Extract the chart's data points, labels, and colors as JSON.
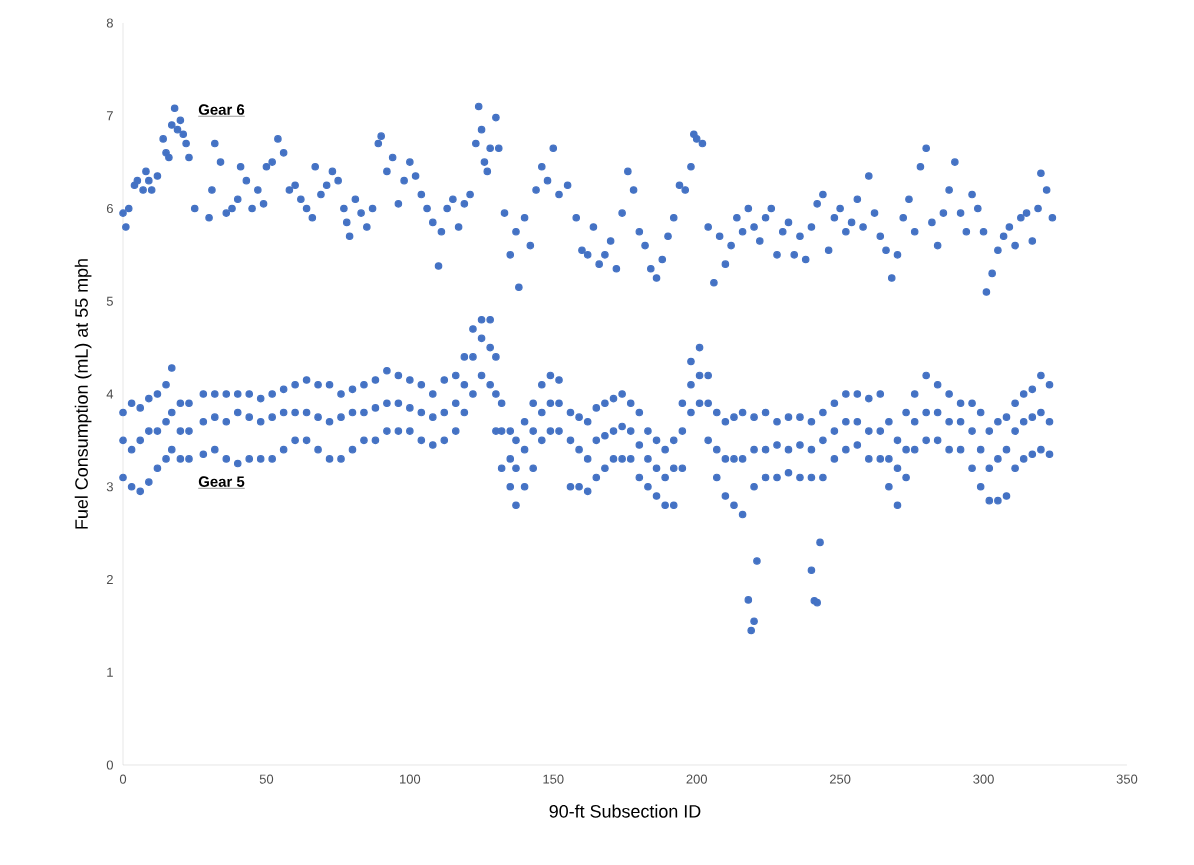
{
  "chart_data": {
    "type": "scatter",
    "xlabel": "90-ft Subsection ID",
    "ylabel": "Fuel Consumption (mL) at 55 mph",
    "xlim": [
      0,
      350
    ],
    "xticks": [
      0,
      50,
      100,
      150,
      200,
      250,
      300,
      350
    ],
    "ylim": [
      0,
      8
    ],
    "yticks": [
      0,
      1,
      2,
      3,
      4,
      5,
      6,
      7,
      8
    ],
    "grid": false,
    "legend": false,
    "marker": "circle",
    "series": [
      {
        "name": "Gear 6",
        "color": "#4472c4",
        "x": [
          0,
          1,
          2,
          4,
          5,
          7,
          8,
          9,
          10,
          12,
          14,
          15,
          16,
          17,
          18,
          19,
          20,
          21,
          22,
          23,
          25,
          30,
          31,
          32,
          34,
          36,
          38,
          40,
          41,
          43,
          45,
          47,
          49,
          50,
          52,
          54,
          56,
          58,
          60,
          62,
          64,
          66,
          67,
          69,
          71,
          73,
          75,
          77,
          78,
          79,
          81,
          83,
          85,
          87,
          89,
          90,
          92,
          94,
          96,
          98,
          100,
          102,
          104,
          106,
          108,
          110,
          111,
          113,
          115,
          117,
          119,
          121,
          123,
          124,
          125,
          126,
          127,
          128,
          130,
          131,
          133,
          135,
          137,
          138,
          140,
          142,
          144,
          146,
          148,
          150,
          152,
          155,
          158,
          160,
          162,
          164,
          166,
          168,
          170,
          172,
          174,
          176,
          178,
          180,
          182,
          184,
          186,
          188,
          190,
          192,
          194,
          196,
          198,
          199,
          200,
          202,
          204,
          206,
          208,
          210,
          212,
          214,
          216,
          218,
          220,
          222,
          224,
          226,
          228,
          230,
          232,
          234,
          236,
          238,
          240,
          242,
          244,
          246,
          248,
          250,
          252,
          254,
          256,
          258,
          260,
          262,
          264,
          266,
          268,
          270,
          272,
          274,
          276,
          278,
          280,
          282,
          284,
          286,
          288,
          290,
          292,
          294,
          296,
          298,
          300,
          301,
          303,
          305,
          307,
          309,
          311,
          313,
          315,
          317,
          319,
          320,
          322,
          324
        ],
        "values": [
          5.95,
          5.8,
          6.0,
          6.25,
          6.3,
          6.2,
          6.4,
          6.3,
          6.2,
          6.35,
          6.75,
          6.6,
          6.55,
          6.9,
          7.08,
          6.85,
          6.95,
          6.8,
          6.7,
          6.55,
          6.0,
          5.9,
          6.2,
          6.7,
          6.5,
          5.95,
          6.0,
          6.1,
          6.45,
          6.3,
          6.0,
          6.2,
          6.05,
          6.45,
          6.5,
          6.75,
          6.6,
          6.2,
          6.25,
          6.1,
          6.0,
          5.9,
          6.45,
          6.15,
          6.25,
          6.4,
          6.3,
          6.0,
          5.85,
          5.7,
          6.1,
          5.95,
          5.8,
          6.0,
          6.7,
          6.78,
          6.4,
          6.55,
          6.05,
          6.3,
          6.5,
          6.35,
          6.15,
          6.0,
          5.85,
          5.38,
          5.75,
          6.0,
          6.1,
          5.8,
          6.05,
          6.15,
          6.7,
          7.1,
          6.85,
          6.5,
          6.4,
          6.65,
          6.98,
          6.65,
          5.95,
          5.5,
          5.75,
          5.15,
          5.9,
          5.6,
          6.2,
          6.45,
          6.3,
          6.65,
          6.15,
          6.25,
          5.9,
          5.55,
          5.5,
          5.8,
          5.4,
          5.5,
          5.65,
          5.35,
          5.95,
          6.4,
          6.2,
          5.75,
          5.6,
          5.35,
          5.25,
          5.45,
          5.7,
          5.9,
          6.25,
          6.2,
          6.45,
          6.8,
          6.75,
          6.7,
          5.8,
          5.2,
          5.7,
          5.4,
          5.6,
          5.9,
          5.75,
          6.0,
          5.8,
          5.65,
          5.9,
          6.0,
          5.5,
          5.75,
          5.85,
          5.5,
          5.7,
          5.45,
          5.8,
          6.05,
          6.15,
          5.55,
          5.9,
          6.0,
          5.75,
          5.85,
          6.1,
          5.8,
          6.35,
          5.95,
          5.7,
          5.55,
          5.25,
          5.5,
          5.9,
          6.1,
          5.75,
          6.45,
          6.65,
          5.85,
          5.6,
          5.95,
          6.2,
          6.5,
          5.95,
          5.75,
          6.15,
          6.0,
          5.75,
          5.1,
          5.3,
          5.55,
          5.7,
          5.8,
          5.6,
          5.9,
          5.95,
          5.65,
          6.0,
          6.38,
          6.2,
          5.9
        ]
      },
      {
        "name": "Gear 5",
        "color": "#4472c4",
        "x": [
          0,
          0,
          0,
          3,
          3,
          3,
          6,
          6,
          6,
          9,
          9,
          9,
          12,
          12,
          12,
          15,
          15,
          15,
          17,
          17,
          17,
          20,
          20,
          20,
          23,
          23,
          23,
          28,
          28,
          28,
          32,
          32,
          32,
          36,
          36,
          36,
          40,
          40,
          40,
          44,
          44,
          44,
          48,
          48,
          48,
          52,
          52,
          52,
          56,
          56,
          56,
          60,
          60,
          60,
          64,
          64,
          64,
          68,
          68,
          68,
          72,
          72,
          72,
          76,
          76,
          76,
          80,
          80,
          80,
          84,
          84,
          84,
          88,
          88,
          88,
          92,
          92,
          92,
          96,
          96,
          96,
          100,
          100,
          100,
          104,
          104,
          104,
          108,
          108,
          108,
          112,
          112,
          112,
          116,
          116,
          116,
          119,
          119,
          119,
          122,
          122,
          122,
          125,
          125,
          125,
          128,
          128,
          128,
          130,
          130,
          130,
          132,
          132,
          132,
          135,
          135,
          135,
          137,
          137,
          137,
          140,
          140,
          140,
          143,
          143,
          143,
          146,
          146,
          146,
          149,
          149,
          149,
          152,
          152,
          152,
          156,
          156,
          156,
          159,
          159,
          159,
          162,
          162,
          162,
          165,
          165,
          165,
          168,
          168,
          168,
          171,
          171,
          171,
          174,
          174,
          174,
          177,
          177,
          177,
          180,
          180,
          180,
          183,
          183,
          183,
          186,
          186,
          186,
          189,
          189,
          189,
          192,
          192,
          192,
          195,
          195,
          195,
          198,
          198,
          198,
          201,
          201,
          201,
          204,
          204,
          204,
          207,
          207,
          207,
          210,
          210,
          210,
          213,
          213,
          213,
          216,
          216,
          216,
          220,
          220,
          220,
          224,
          224,
          224,
          228,
          228,
          228,
          232,
          232,
          232,
          236,
          236,
          236,
          240,
          240,
          240,
          244,
          244,
          244,
          248,
          248,
          248,
          252,
          252,
          252,
          256,
          256,
          256,
          260,
          260,
          260,
          264,
          264,
          264,
          267,
          267,
          267,
          270,
          270,
          270,
          273,
          273,
          273,
          276,
          276,
          276,
          280,
          280,
          280,
          284,
          284,
          284,
          288,
          288,
          288,
          292,
          292,
          292,
          296,
          296,
          296,
          299,
          299,
          299,
          302,
          302,
          302,
          305,
          305,
          305,
          308,
          308,
          308,
          311,
          311,
          311,
          314,
          314,
          314,
          317,
          317,
          317,
          320,
          320,
          320,
          323,
          323,
          323,
          218,
          219,
          220,
          221,
          240,
          241,
          242,
          243
        ],
        "values": [
          3.1,
          3.5,
          3.8,
          3.0,
          3.4,
          3.9,
          2.95,
          3.5,
          3.85,
          3.05,
          3.6,
          3.95,
          3.2,
          3.6,
          4.0,
          3.3,
          3.7,
          4.1,
          3.4,
          3.8,
          4.28,
          3.3,
          3.6,
          3.9,
          3.3,
          3.6,
          3.9,
          3.35,
          3.7,
          4.0,
          3.4,
          3.75,
          4.0,
          3.3,
          3.7,
          4.0,
          3.25,
          3.8,
          4.0,
          3.3,
          3.75,
          4.0,
          3.3,
          3.7,
          3.95,
          3.3,
          3.75,
          4.0,
          3.4,
          3.8,
          4.05,
          3.5,
          3.8,
          4.1,
          3.5,
          3.8,
          4.15,
          3.4,
          3.75,
          4.1,
          3.3,
          3.7,
          4.1,
          3.3,
          3.75,
          4.0,
          3.4,
          3.8,
          4.05,
          3.5,
          3.8,
          4.1,
          3.5,
          3.85,
          4.15,
          3.6,
          3.9,
          4.25,
          3.6,
          3.9,
          4.2,
          3.6,
          3.85,
          4.15,
          3.5,
          3.8,
          4.1,
          3.45,
          3.75,
          4.0,
          3.5,
          3.8,
          4.15,
          3.6,
          3.9,
          4.2,
          3.8,
          4.1,
          4.4,
          4.0,
          4.4,
          4.7,
          4.2,
          4.6,
          4.8,
          4.1,
          4.5,
          4.8,
          3.6,
          4.0,
          4.4,
          3.2,
          3.6,
          3.9,
          3.0,
          3.3,
          3.6,
          2.8,
          3.2,
          3.5,
          3.0,
          3.4,
          3.7,
          3.2,
          3.6,
          3.9,
          3.5,
          3.8,
          4.1,
          3.6,
          3.9,
          4.2,
          3.6,
          3.9,
          4.15,
          3.0,
          3.5,
          3.8,
          3.0,
          3.4,
          3.75,
          2.95,
          3.3,
          3.7,
          3.1,
          3.5,
          3.85,
          3.2,
          3.55,
          3.9,
          3.3,
          3.6,
          3.95,
          3.3,
          3.65,
          4.0,
          3.3,
          3.6,
          3.9,
          3.1,
          3.45,
          3.8,
          3.0,
          3.3,
          3.6,
          2.9,
          3.2,
          3.5,
          2.8,
          3.1,
          3.4,
          2.8,
          3.2,
          3.5,
          3.2,
          3.6,
          3.9,
          3.8,
          4.1,
          4.35,
          3.9,
          4.2,
          4.5,
          3.5,
          3.9,
          4.2,
          3.1,
          3.4,
          3.8,
          2.9,
          3.3,
          3.7,
          2.8,
          3.3,
          3.75,
          2.7,
          3.3,
          3.8,
          3.0,
          3.4,
          3.75,
          3.1,
          3.4,
          3.8,
          3.1,
          3.45,
          3.7,
          3.15,
          3.4,
          3.75,
          3.1,
          3.45,
          3.75,
          3.1,
          3.4,
          3.7,
          3.1,
          3.5,
          3.8,
          3.3,
          3.6,
          3.9,
          3.4,
          3.7,
          4.0,
          3.45,
          3.7,
          4.0,
          3.3,
          3.6,
          3.95,
          3.3,
          3.6,
          4.0,
          3.0,
          3.3,
          3.7,
          2.8,
          3.2,
          3.5,
          3.1,
          3.4,
          3.8,
          3.4,
          3.7,
          4.0,
          3.5,
          3.8,
          4.2,
          3.5,
          3.8,
          4.1,
          3.4,
          3.7,
          4.0,
          3.4,
          3.7,
          3.9,
          3.2,
          3.6,
          3.9,
          3.0,
          3.4,
          3.8,
          2.85,
          3.2,
          3.6,
          2.85,
          3.3,
          3.7,
          2.9,
          3.4,
          3.75,
          3.2,
          3.6,
          3.9,
          3.3,
          3.7,
          4.0,
          3.35,
          3.75,
          4.05,
          3.4,
          3.8,
          4.2,
          3.35,
          3.7,
          4.1,
          1.78,
          1.45,
          1.55,
          2.2,
          2.1,
          1.77,
          1.75,
          2.4
        ]
      }
    ]
  }
}
